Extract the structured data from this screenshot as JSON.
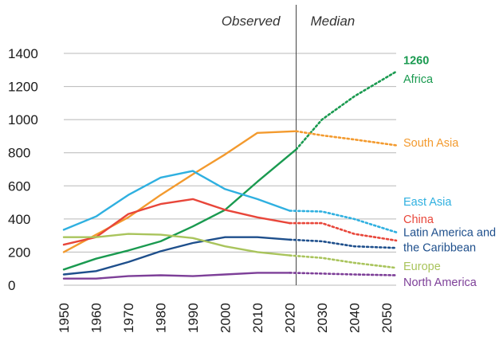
{
  "chart_data": {
    "type": "line",
    "title": "",
    "xlabel": "",
    "ylabel": "",
    "x": [
      1950,
      1960,
      1970,
      1980,
      1990,
      2000,
      2010,
      2020,
      2030,
      2040,
      2050
    ],
    "xlim": [
      1950,
      2053
    ],
    "ylim": [
      0,
      1400
    ],
    "yticks": [
      0,
      200,
      400,
      600,
      800,
      1000,
      1200,
      1400
    ],
    "xticks": [
      "1950",
      "1960",
      "1970",
      "1980",
      "1990",
      "2000",
      "2010",
      "2020",
      "2030",
      "2040",
      "2050"
    ],
    "grid": true,
    "projection_start": 2022,
    "sections": {
      "observed": "Observed",
      "projected": "Median"
    },
    "highlight_value": "1260",
    "series": [
      {
        "name": "Africa",
        "color": "#1a9a50",
        "observed": [
          [
            1950,
            95
          ],
          [
            1960,
            160
          ],
          [
            1970,
            210
          ],
          [
            1980,
            265
          ],
          [
            1990,
            355
          ],
          [
            2000,
            455
          ],
          [
            2010,
            625
          ],
          [
            2022,
            820
          ]
        ],
        "projected": [
          [
            2022,
            820
          ],
          [
            2030,
            1000
          ],
          [
            2040,
            1140
          ],
          [
            2053,
            1290
          ]
        ]
      },
      {
        "name": "South Asia",
        "color": "#f39a2e",
        "observed": [
          [
            1950,
            200
          ],
          [
            1960,
            305
          ],
          [
            1970,
            410
          ],
          [
            1980,
            545
          ],
          [
            1990,
            670
          ],
          [
            2000,
            790
          ],
          [
            2010,
            920
          ],
          [
            2022,
            930
          ]
        ],
        "projected": [
          [
            2022,
            930
          ],
          [
            2030,
            905
          ],
          [
            2040,
            880
          ],
          [
            2053,
            845
          ]
        ]
      },
      {
        "name": "East Asia",
        "color": "#2fb0e0",
        "observed": [
          [
            1950,
            335
          ],
          [
            1960,
            415
          ],
          [
            1970,
            545
          ],
          [
            1980,
            650
          ],
          [
            1990,
            690
          ],
          [
            2000,
            580
          ],
          [
            2010,
            520
          ],
          [
            2020,
            450
          ]
        ],
        "projected": [
          [
            2020,
            450
          ],
          [
            2030,
            445
          ],
          [
            2040,
            400
          ],
          [
            2053,
            320
          ]
        ]
      },
      {
        "name": "China",
        "color": "#e8463a",
        "observed": [
          [
            1950,
            245
          ],
          [
            1960,
            290
          ],
          [
            1970,
            430
          ],
          [
            1980,
            490
          ],
          [
            1990,
            520
          ],
          [
            2000,
            455
          ],
          [
            2010,
            410
          ],
          [
            2020,
            375
          ]
        ],
        "projected": [
          [
            2020,
            375
          ],
          [
            2030,
            375
          ],
          [
            2040,
            310
          ],
          [
            2053,
            270
          ]
        ]
      },
      {
        "name": "Latin America and the Caribbean",
        "color": "#1e4f8c",
        "observed": [
          [
            1950,
            65
          ],
          [
            1960,
            85
          ],
          [
            1970,
            140
          ],
          [
            1980,
            205
          ],
          [
            1990,
            255
          ],
          [
            2000,
            290
          ],
          [
            2010,
            290
          ],
          [
            2020,
            275
          ]
        ],
        "projected": [
          [
            2020,
            275
          ],
          [
            2030,
            265
          ],
          [
            2040,
            235
          ],
          [
            2053,
            225
          ]
        ]
      },
      {
        "name": "Europe",
        "color": "#a9c45c",
        "observed": [
          [
            1950,
            290
          ],
          [
            1960,
            290
          ],
          [
            1970,
            310
          ],
          [
            1980,
            305
          ],
          [
            1990,
            285
          ],
          [
            2000,
            235
          ],
          [
            2010,
            200
          ],
          [
            2020,
            180
          ]
        ],
        "projected": [
          [
            2020,
            180
          ],
          [
            2030,
            165
          ],
          [
            2040,
            135
          ],
          [
            2053,
            105
          ]
        ]
      },
      {
        "name": "North America",
        "color": "#7d3f98",
        "observed": [
          [
            1950,
            40
          ],
          [
            1960,
            40
          ],
          [
            1970,
            55
          ],
          [
            1980,
            60
          ],
          [
            1990,
            55
          ],
          [
            2000,
            65
          ],
          [
            2010,
            75
          ],
          [
            2020,
            75
          ]
        ],
        "projected": [
          [
            2020,
            75
          ],
          [
            2030,
            70
          ],
          [
            2040,
            65
          ],
          [
            2053,
            60
          ]
        ]
      }
    ],
    "labels": [
      {
        "key": "highlight",
        "lines": [
          "1260"
        ],
        "color": "#1a9a50",
        "bold": true,
        "y_anchor": 1360
      },
      {
        "key": "africa",
        "lines": [
          "Africa"
        ],
        "color": "#1a9a50",
        "y_anchor": 1245
      },
      {
        "key": "south-asia",
        "lines": [
          "South Asia"
        ],
        "color": "#f39a2e",
        "y_anchor": 860
      },
      {
        "key": "east-asia",
        "lines": [
          "East Asia"
        ],
        "color": "#2fb0e0",
        "y_anchor": 505
      },
      {
        "key": "china",
        "lines": [
          "China"
        ],
        "color": "#e8463a",
        "y_anchor": 400
      },
      {
        "key": "latin-america",
        "lines": [
          "Latin America and",
          "the Caribbean"
        ],
        "color": "#1e4f8c",
        "y_anchor": 320
      },
      {
        "key": "europe",
        "lines": [
          "Europe"
        ],
        "color": "#a9c45c",
        "y_anchor": 115
      },
      {
        "key": "north-america",
        "lines": [
          "North America"
        ],
        "color": "#7d3f98",
        "y_anchor": 20
      }
    ]
  }
}
